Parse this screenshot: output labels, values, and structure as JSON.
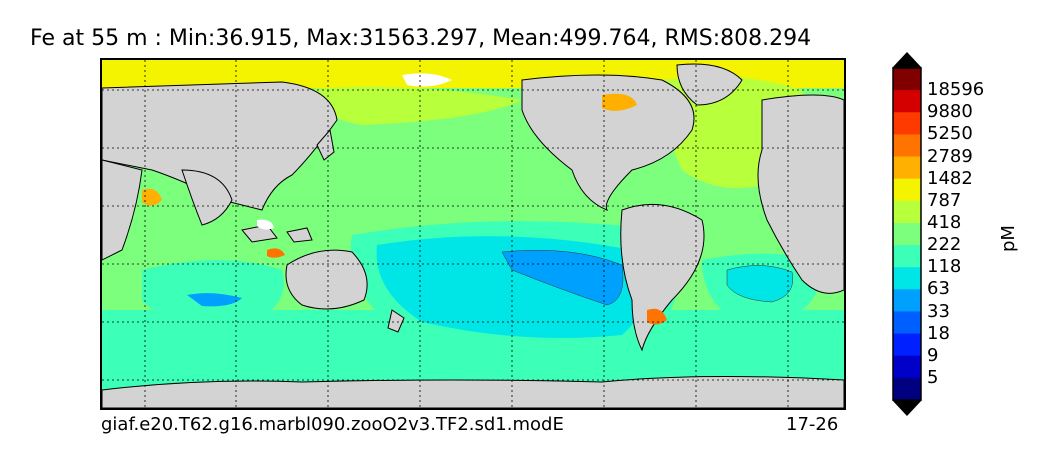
{
  "title": "Fe at 55 m : Min:36.915, Max:31563.297, Mean:499.764, RMS:808.294",
  "footer": {
    "case_name": "giaf.e20.T62.g16.marbl090.zooO2v3.TF2.sd1.modE",
    "years": "17-26"
  },
  "colorbar": {
    "units": "pM",
    "labels": [
      "18596",
      "9880",
      "5250",
      "2789",
      "1482",
      "787",
      "418",
      "222",
      "118",
      "63",
      "33",
      "18",
      "9",
      "5"
    ],
    "colors_top_to_bottom": [
      "#800000",
      "#d40000",
      "#ff3a00",
      "#ff7400",
      "#ffb000",
      "#f4f400",
      "#b8ff3c",
      "#7cff7c",
      "#3cffb8",
      "#00e6e6",
      "#00a0ff",
      "#0060ff",
      "#0020ff",
      "#0000c8",
      "#000080"
    ]
  },
  "map_colors": {
    "land": "#d3d3d3",
    "open_ocean": "#7cff7c",
    "subtropical": "#3cffb8",
    "gyre": "#00e6e6",
    "gyre_core": "#00a0ff",
    "coastal": "#b8ff3c",
    "polar": "#f4f400",
    "shelf": "#ffb000",
    "hotspot": "#ff7400"
  }
}
